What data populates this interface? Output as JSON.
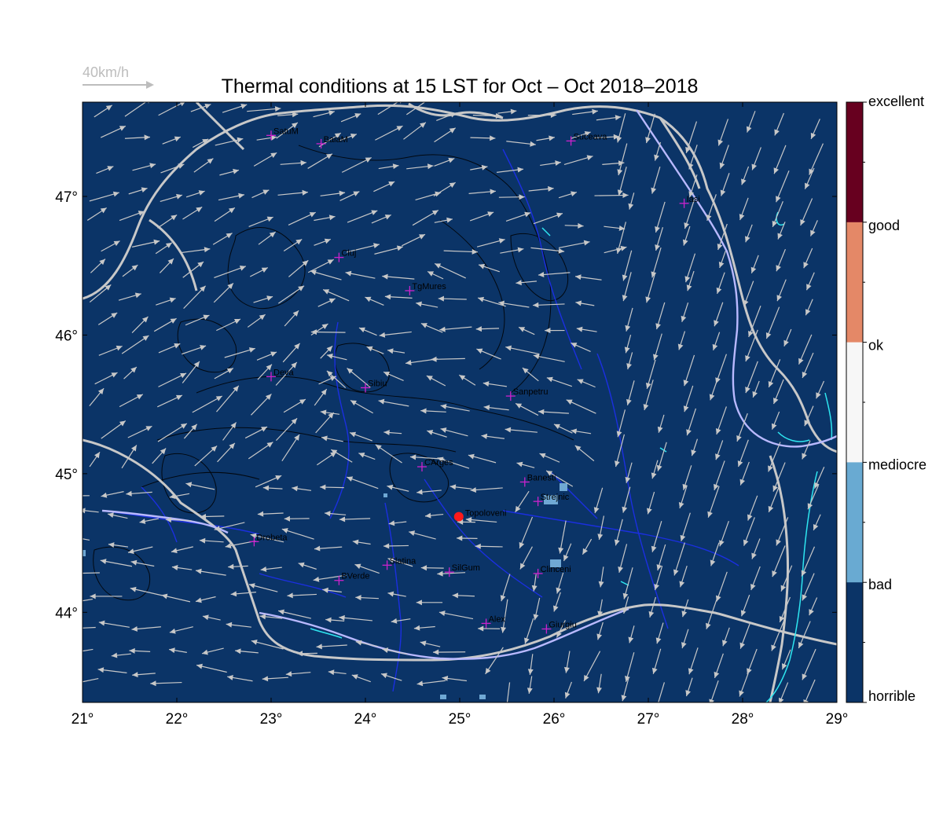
{
  "title": "Thermal conditions at 15 LST for Oct – Oct  2018–2018",
  "wind_legend": {
    "label": "40km/h",
    "color": "#bdbdbd"
  },
  "colors": {
    "map_fill": "#0b3467",
    "contour": "#000000",
    "rivers": "#1b2fe0",
    "borders": "#c8c8c8",
    "arrows": "#c8c8c8",
    "coast": "#2ee6f0",
    "city_marker": "#cc22cc",
    "highlight_point": "#ff1a1a",
    "light_patch": "#6fa8d4"
  },
  "chart_data": {
    "type": "heatmap",
    "title": "Thermal conditions at 15 LST for Oct – Oct  2018–2018",
    "x_ticks": [
      "21°",
      "22°",
      "23°",
      "24°",
      "25°",
      "26°",
      "27°",
      "28°",
      "29°"
    ],
    "y_ticks": [
      "47°",
      "46°",
      "45°",
      "44°"
    ],
    "xlim": [
      21,
      29
    ],
    "ylim": [
      43.35,
      47.68
    ],
    "colorbar": [
      {
        "label": "excellent",
        "color": "#67001f"
      },
      {
        "label": "good",
        "color": "#e48867"
      },
      {
        "label": "ok",
        "color": "#f7f7f7"
      },
      {
        "label": "mediocre",
        "color": "#69aad2"
      },
      {
        "label": "bad",
        "color": "#0b3467"
      },
      {
        "label": "horrible",
        "color": "#0b3467"
      }
    ],
    "cities": [
      {
        "name": "SatuM",
        "lon": 23.0,
        "lat": 47.44
      },
      {
        "name": "BaiaM",
        "lon": 23.53,
        "lat": 47.38
      },
      {
        "name": "Suceava",
        "lon": 26.18,
        "lat": 47.4
      },
      {
        "name": "Iasi",
        "lon": 27.38,
        "lat": 46.95
      },
      {
        "name": "Cluj",
        "lon": 23.72,
        "lat": 46.56
      },
      {
        "name": "TgMures",
        "lon": 24.47,
        "lat": 46.32
      },
      {
        "name": "Deva",
        "lon": 23.0,
        "lat": 45.7
      },
      {
        "name": "Sibiu",
        "lon": 24.0,
        "lat": 45.62
      },
      {
        "name": "Sanpetru",
        "lon": 25.54,
        "lat": 45.56
      },
      {
        "name": "CArges",
        "lon": 24.6,
        "lat": 45.05
      },
      {
        "name": "Banesti",
        "lon": 25.69,
        "lat": 44.94
      },
      {
        "name": "Strejnic",
        "lon": 25.83,
        "lat": 44.8
      },
      {
        "name": "Drobeta",
        "lon": 22.82,
        "lat": 44.51
      },
      {
        "name": "Slatina",
        "lon": 24.23,
        "lat": 44.34
      },
      {
        "name": "SilGum",
        "lon": 24.89,
        "lat": 44.29
      },
      {
        "name": "Clinceni",
        "lon": 25.83,
        "lat": 44.28
      },
      {
        "name": "BVerde",
        "lon": 23.72,
        "lat": 44.23
      },
      {
        "name": "Alex",
        "lon": 25.28,
        "lat": 43.92
      },
      {
        "name": "Giurgiu",
        "lon": 25.92,
        "lat": 43.88
      }
    ],
    "highlight": {
      "name": "Topoloveni",
      "lon": 24.99,
      "lat": 44.69
    }
  }
}
